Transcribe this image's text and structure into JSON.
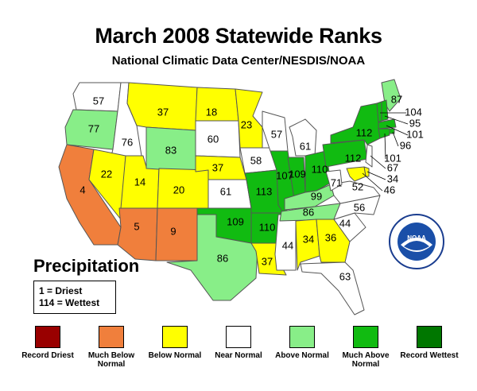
{
  "header": {
    "title": "March 2008 Statewide Ranks",
    "subtitle": "National Climatic Data Center/NESDIS/NOAA"
  },
  "map_label": "Precipitation",
  "key": {
    "driest": "1 = Driest",
    "wettest": "114 = Wettest"
  },
  "colors": {
    "record_driest": "#990000",
    "much_below": "#f07f3c",
    "below": "#ffff00",
    "near": "#ffffff",
    "above": "#88ee88",
    "much_above": "#11bb11",
    "record_wettest": "#007700"
  },
  "legend": [
    {
      "label": "Record Driest",
      "color": "#990000"
    },
    {
      "label": "Much Below Normal",
      "color": "#f07f3c"
    },
    {
      "label": "Below Normal",
      "color": "#ffff00"
    },
    {
      "label": "Near Normal",
      "color": "#ffffff"
    },
    {
      "label": "Above Normal",
      "color": "#88ee88"
    },
    {
      "label": "Much Above Normal",
      "color": "#11bb11"
    },
    {
      "label": "Record Wettest",
      "color": "#007700"
    }
  ],
  "states": [
    {
      "state": "WA",
      "rank": "57",
      "category": "near"
    },
    {
      "state": "OR",
      "rank": "77",
      "category": "above"
    },
    {
      "state": "CA",
      "rank": "4",
      "category": "much_below"
    },
    {
      "state": "ID",
      "rank": "76",
      "category": "near"
    },
    {
      "state": "NV",
      "rank": "22",
      "category": "below"
    },
    {
      "state": "UT",
      "rank": "14",
      "category": "below"
    },
    {
      "state": "AZ",
      "rank": "5",
      "category": "much_below"
    },
    {
      "state": "MT",
      "rank": "37",
      "category": "below"
    },
    {
      "state": "WY",
      "rank": "83",
      "category": "above"
    },
    {
      "state": "CO",
      "rank": "20",
      "category": "below"
    },
    {
      "state": "NM",
      "rank": "9",
      "category": "much_below"
    },
    {
      "state": "ND",
      "rank": "18",
      "category": "below"
    },
    {
      "state": "SD",
      "rank": "60",
      "category": "near"
    },
    {
      "state": "NE",
      "rank": "37",
      "category": "below"
    },
    {
      "state": "KS",
      "rank": "61",
      "category": "near"
    },
    {
      "state": "OK",
      "rank": "109",
      "category": "much_above"
    },
    {
      "state": "TX",
      "rank": "86",
      "category": "above"
    },
    {
      "state": "MN",
      "rank": "23",
      "category": "below"
    },
    {
      "state": "IA",
      "rank": "58",
      "category": "near"
    },
    {
      "state": "MO",
      "rank": "113",
      "category": "much_above"
    },
    {
      "state": "AR",
      "rank": "110",
      "category": "much_above"
    },
    {
      "state": "LA",
      "rank": "37",
      "category": "below"
    },
    {
      "state": "WI",
      "rank": "57",
      "category": "near"
    },
    {
      "state": "IL",
      "rank": "107",
      "category": "much_above"
    },
    {
      "state": "MS",
      "rank": "44",
      "category": "near"
    },
    {
      "state": "MI",
      "rank": "61",
      "category": "near"
    },
    {
      "state": "IN",
      "rank": "109",
      "category": "much_above"
    },
    {
      "state": "OH",
      "rank": "110",
      "category": "much_above"
    },
    {
      "state": "KY",
      "rank": "99",
      "category": "above"
    },
    {
      "state": "TN",
      "rank": "86",
      "category": "above"
    },
    {
      "state": "AL",
      "rank": "34",
      "category": "below"
    },
    {
      "state": "GA",
      "rank": "36",
      "category": "below"
    },
    {
      "state": "FL",
      "rank": "63",
      "category": "near"
    },
    {
      "state": "SC",
      "rank": "44",
      "category": "near"
    },
    {
      "state": "NC",
      "rank": "56",
      "category": "near"
    },
    {
      "state": "VA",
      "rank": "52",
      "category": "near"
    },
    {
      "state": "WV",
      "rank": "71",
      "category": "near"
    },
    {
      "state": "PA",
      "rank": "112",
      "category": "much_above"
    },
    {
      "state": "NY",
      "rank": "112",
      "category": "much_above"
    },
    {
      "state": "ME",
      "rank": "87",
      "category": "above"
    },
    {
      "state": "VT",
      "rank": "104",
      "category": "much_above"
    },
    {
      "state": "NH",
      "rank": "95",
      "category": "much_above"
    },
    {
      "state": "MA",
      "rank": "101",
      "category": "much_above"
    },
    {
      "state": "RI",
      "rank": "96",
      "category": "much_above"
    },
    {
      "state": "CT",
      "rank": "101",
      "category": "much_above"
    },
    {
      "state": "NJ",
      "rank": "67",
      "category": "near"
    },
    {
      "state": "DE",
      "rank": "34",
      "category": "below"
    },
    {
      "state": "MD",
      "rank": "46",
      "category": "below"
    }
  ]
}
